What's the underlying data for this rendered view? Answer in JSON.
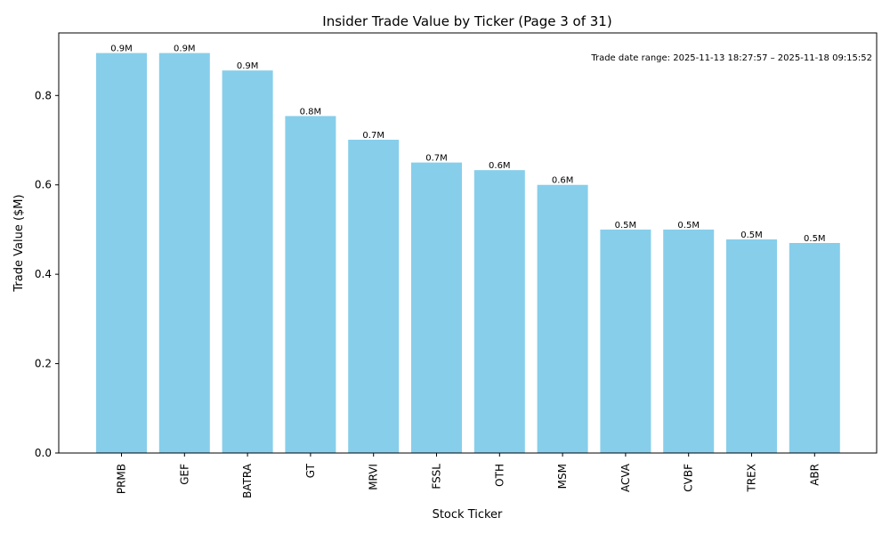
{
  "chart_data": {
    "type": "bar",
    "title": "Insider Trade Value by Ticker (Page 3 of 31)",
    "xlabel": "Stock Ticker",
    "ylabel": "Trade Value ($M)",
    "categories": [
      "PRMB",
      "GEF",
      "BATRA",
      "GT",
      "MRVI",
      "FSSL",
      "OTH",
      "MSM",
      "ACVA",
      "CVBF",
      "TREX",
      "ABR"
    ],
    "values": [
      0.895,
      0.895,
      0.856,
      0.754,
      0.701,
      0.65,
      0.633,
      0.6,
      0.5,
      0.5,
      0.478,
      0.47
    ],
    "data_labels": [
      "0.9M",
      "0.9M",
      "0.9M",
      "0.8M",
      "0.7M",
      "0.7M",
      "0.6M",
      "0.6M",
      "0.5M",
      "0.5M",
      "0.5M",
      "0.5M"
    ],
    "ylim": [
      0,
      0.94
    ],
    "yticks": [
      0.0,
      0.2,
      0.4,
      0.6,
      0.8
    ],
    "ytick_labels": [
      "0.0",
      "0.2",
      "0.4",
      "0.6",
      "0.8"
    ],
    "bar_color": "#87CEEB",
    "grid": false,
    "annotation": "Trade date range: 2025-11-13 18:27:57 – 2025-11-18 09:15:52"
  }
}
